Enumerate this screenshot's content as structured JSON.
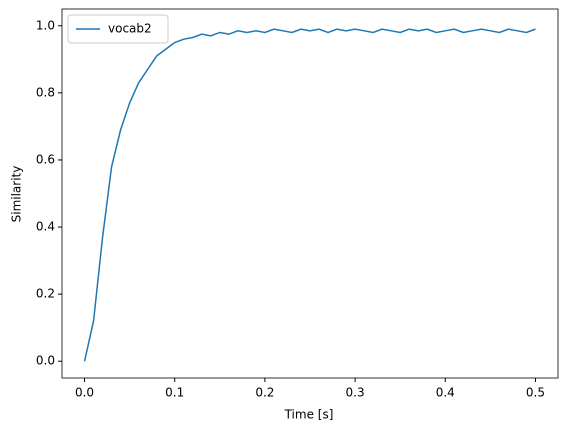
{
  "chart_data": {
    "type": "line",
    "xlabel": "Time [s]",
    "ylabel": "Similarity",
    "x": [
      0.0,
      0.01,
      0.02,
      0.03,
      0.04,
      0.05,
      0.06,
      0.07,
      0.08,
      0.09,
      0.1,
      0.11,
      0.12,
      0.13,
      0.14,
      0.15,
      0.16,
      0.17,
      0.18,
      0.19,
      0.2,
      0.21,
      0.22,
      0.23,
      0.24,
      0.25,
      0.26,
      0.27,
      0.28,
      0.29,
      0.3,
      0.31,
      0.32,
      0.33,
      0.34,
      0.35,
      0.36,
      0.37,
      0.38,
      0.39,
      0.4,
      0.41,
      0.42,
      0.43,
      0.44,
      0.45,
      0.46,
      0.47,
      0.48,
      0.49,
      0.5
    ],
    "series": [
      {
        "name": "vocab2",
        "color": "#1f77b4",
        "values": [
          0.0,
          0.12,
          0.37,
          0.58,
          0.69,
          0.77,
          0.83,
          0.87,
          0.91,
          0.93,
          0.95,
          0.96,
          0.965,
          0.975,
          0.97,
          0.98,
          0.975,
          0.985,
          0.98,
          0.985,
          0.98,
          0.99,
          0.985,
          0.98,
          0.99,
          0.985,
          0.99,
          0.98,
          0.99,
          0.985,
          0.99,
          0.985,
          0.98,
          0.99,
          0.985,
          0.98,
          0.99,
          0.985,
          0.99,
          0.98,
          0.985,
          0.99,
          0.98,
          0.985,
          0.99,
          0.985,
          0.98,
          0.99,
          0.985,
          0.98,
          0.99
        ]
      }
    ],
    "xlim": [
      -0.025,
      0.525
    ],
    "xticks": [
      {
        "value": 0,
        "label": "0.0"
      },
      {
        "value": 0.1,
        "label": "0.1"
      },
      {
        "value": 0.2,
        "label": "0.2"
      },
      {
        "value": 0.3,
        "label": "0.3"
      },
      {
        "value": 0.4,
        "label": "0.4"
      },
      {
        "value": 0.5,
        "label": "0.5"
      }
    ],
    "ylim": [
      -0.05,
      1.05
    ],
    "yticks": [
      {
        "value": 0,
        "label": "0.0"
      },
      {
        "value": 0.2,
        "label": "0.2"
      },
      {
        "value": 0.4,
        "label": "0.4"
      },
      {
        "value": 0.6,
        "label": "0.6"
      },
      {
        "value": 0.8,
        "label": "0.8"
      },
      {
        "value": 1,
        "label": "1.0"
      }
    ],
    "legend": "upper left",
    "grid": false
  }
}
